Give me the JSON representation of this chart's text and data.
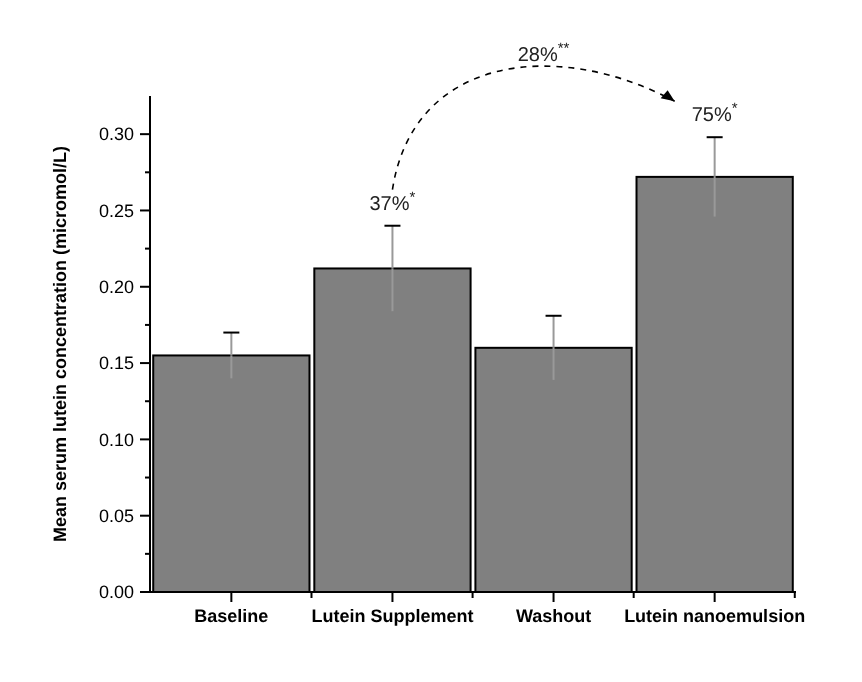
{
  "chart_data": {
    "type": "bar",
    "ylabel": "Mean serum lutein concentration (micromol/L)",
    "categories": [
      "Baseline",
      "Lutein Supplement",
      "Washout",
      "Lutein nanoemulsion"
    ],
    "values": [
      0.155,
      0.212,
      0.16,
      0.272
    ],
    "errors": [
      0.015,
      0.028,
      0.021,
      0.026
    ],
    "color": "#808080",
    "ylim": [
      0,
      0.325
    ],
    "yticks": [
      {
        "value": 0,
        "label": "0.00"
      },
      {
        "value": 0.025,
        "label": null
      },
      {
        "value": 0.05,
        "label": "0.05"
      },
      {
        "value": 0.075,
        "label": null
      },
      {
        "value": 0.1,
        "label": "0.10"
      },
      {
        "value": 0.125,
        "label": null
      },
      {
        "value": 0.15,
        "label": "0.15"
      },
      {
        "value": 0.175,
        "label": null
      },
      {
        "value": 0.2,
        "label": "0.20"
      },
      {
        "value": 0.225,
        "label": null
      },
      {
        "value": 0.25,
        "label": "0.25"
      },
      {
        "value": 0.275,
        "label": null
      },
      {
        "value": 0.3,
        "label": "0.30"
      }
    ],
    "grid": false,
    "annotations": [
      "37%$^{*}$",
      "75%$^{*}$",
      "28%$^{**}$"
    ]
  }
}
